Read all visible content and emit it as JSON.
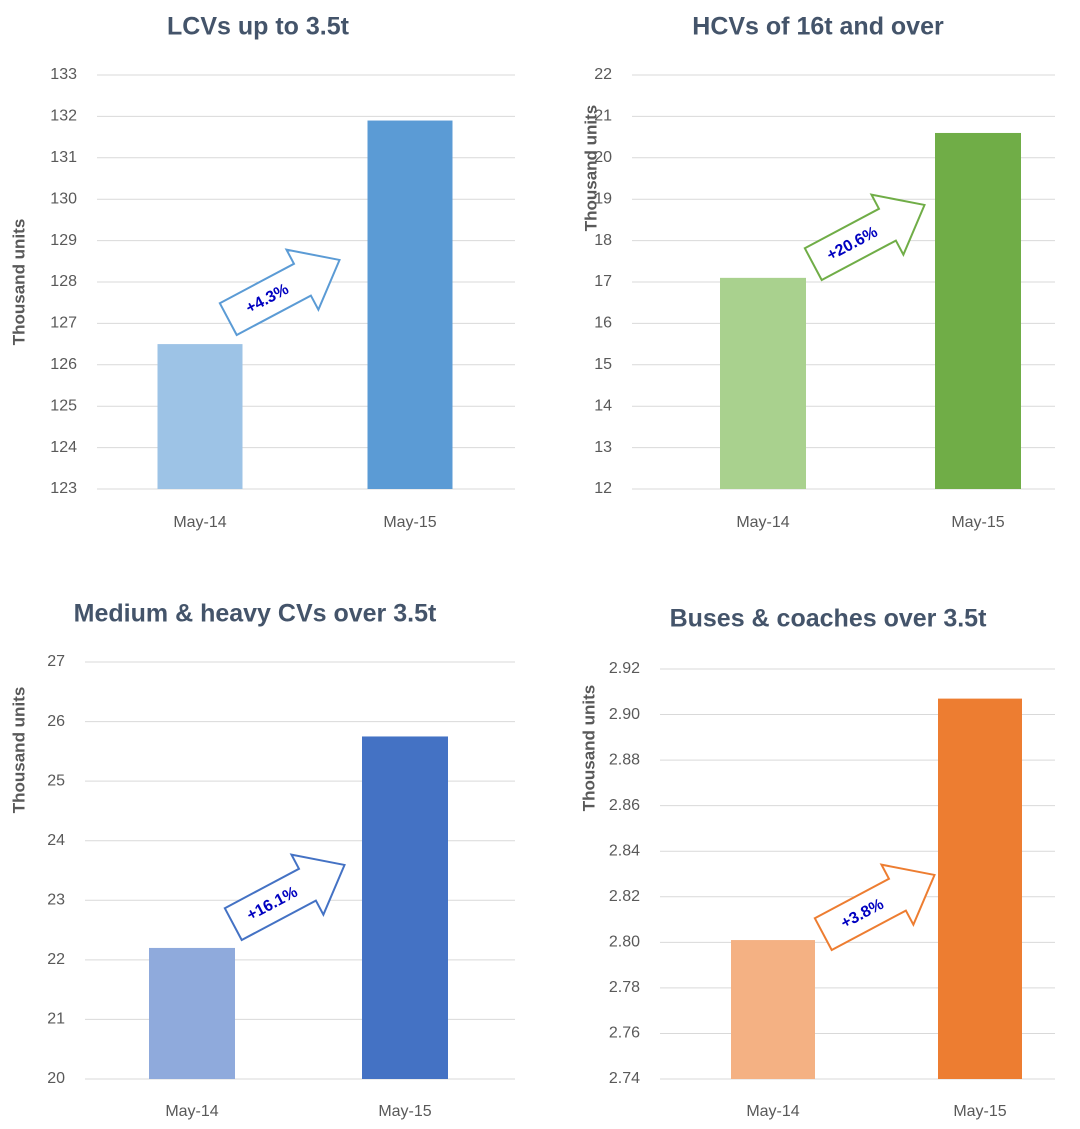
{
  "chart_data": [
    {
      "type": "bar",
      "title": "LCVs up to 3.5t",
      "y_label": "Thousand units",
      "categories": [
        "May-14",
        "May-15"
      ],
      "values": [
        126.5,
        131.9
      ],
      "colors": [
        "#9dc3e6",
        "#5b9bd5"
      ],
      "ylim": [
        123,
        133
      ],
      "yticks": [
        123,
        124,
        125,
        126,
        127,
        128,
        129,
        130,
        131,
        132,
        133
      ],
      "grid": true,
      "annotation": "+4.3%"
    },
    {
      "type": "bar",
      "title": "HCVs of 16t and over",
      "y_label": "Thousand units",
      "categories": [
        "May-14",
        "May-15"
      ],
      "values": [
        17.1,
        20.6
      ],
      "colors": [
        "#a9d18e",
        "#70ad47"
      ],
      "ylim": [
        12,
        22
      ],
      "yticks": [
        12,
        13,
        14,
        15,
        16,
        17,
        18,
        19,
        20,
        21,
        22
      ],
      "grid": true,
      "annotation": "+20.6%"
    },
    {
      "type": "bar",
      "title": "Medium & heavy CVs over 3.5t",
      "y_label": "Thousand units",
      "categories": [
        "May-14",
        "May-15"
      ],
      "values": [
        22.2,
        25.75
      ],
      "colors": [
        "#8faadc",
        "#4472c4"
      ],
      "ylim": [
        20,
        27
      ],
      "yticks": [
        20,
        21,
        22,
        23,
        24,
        25,
        26,
        27
      ],
      "grid": true,
      "annotation": "+16.1%"
    },
    {
      "type": "bar",
      "title": "Buses & coaches over 3.5t",
      "y_label": "Thousand units",
      "categories": [
        "May-14",
        "May-15"
      ],
      "values": [
        2.801,
        2.907
      ],
      "colors": [
        "#f4b183",
        "#ed7d31"
      ],
      "ylim": [
        2.74,
        2.92
      ],
      "yticks": [
        {
          "value": 2.74,
          "label": "2.74"
        },
        {
          "value": 2.76,
          "label": "2.76"
        },
        {
          "value": 2.78,
          "label": "2.78"
        },
        {
          "value": 2.8,
          "label": "2.80"
        },
        {
          "value": 2.82,
          "label": "2.82"
        },
        {
          "value": 2.84,
          "label": "2.84"
        },
        {
          "value": 2.86,
          "label": "2.86"
        },
        {
          "value": 2.88,
          "label": "2.88"
        },
        {
          "value": 2.9,
          "label": "2.90"
        },
        {
          "value": 2.92,
          "label": "2.92"
        }
      ],
      "grid": true,
      "annotation": "+3.8%"
    }
  ]
}
